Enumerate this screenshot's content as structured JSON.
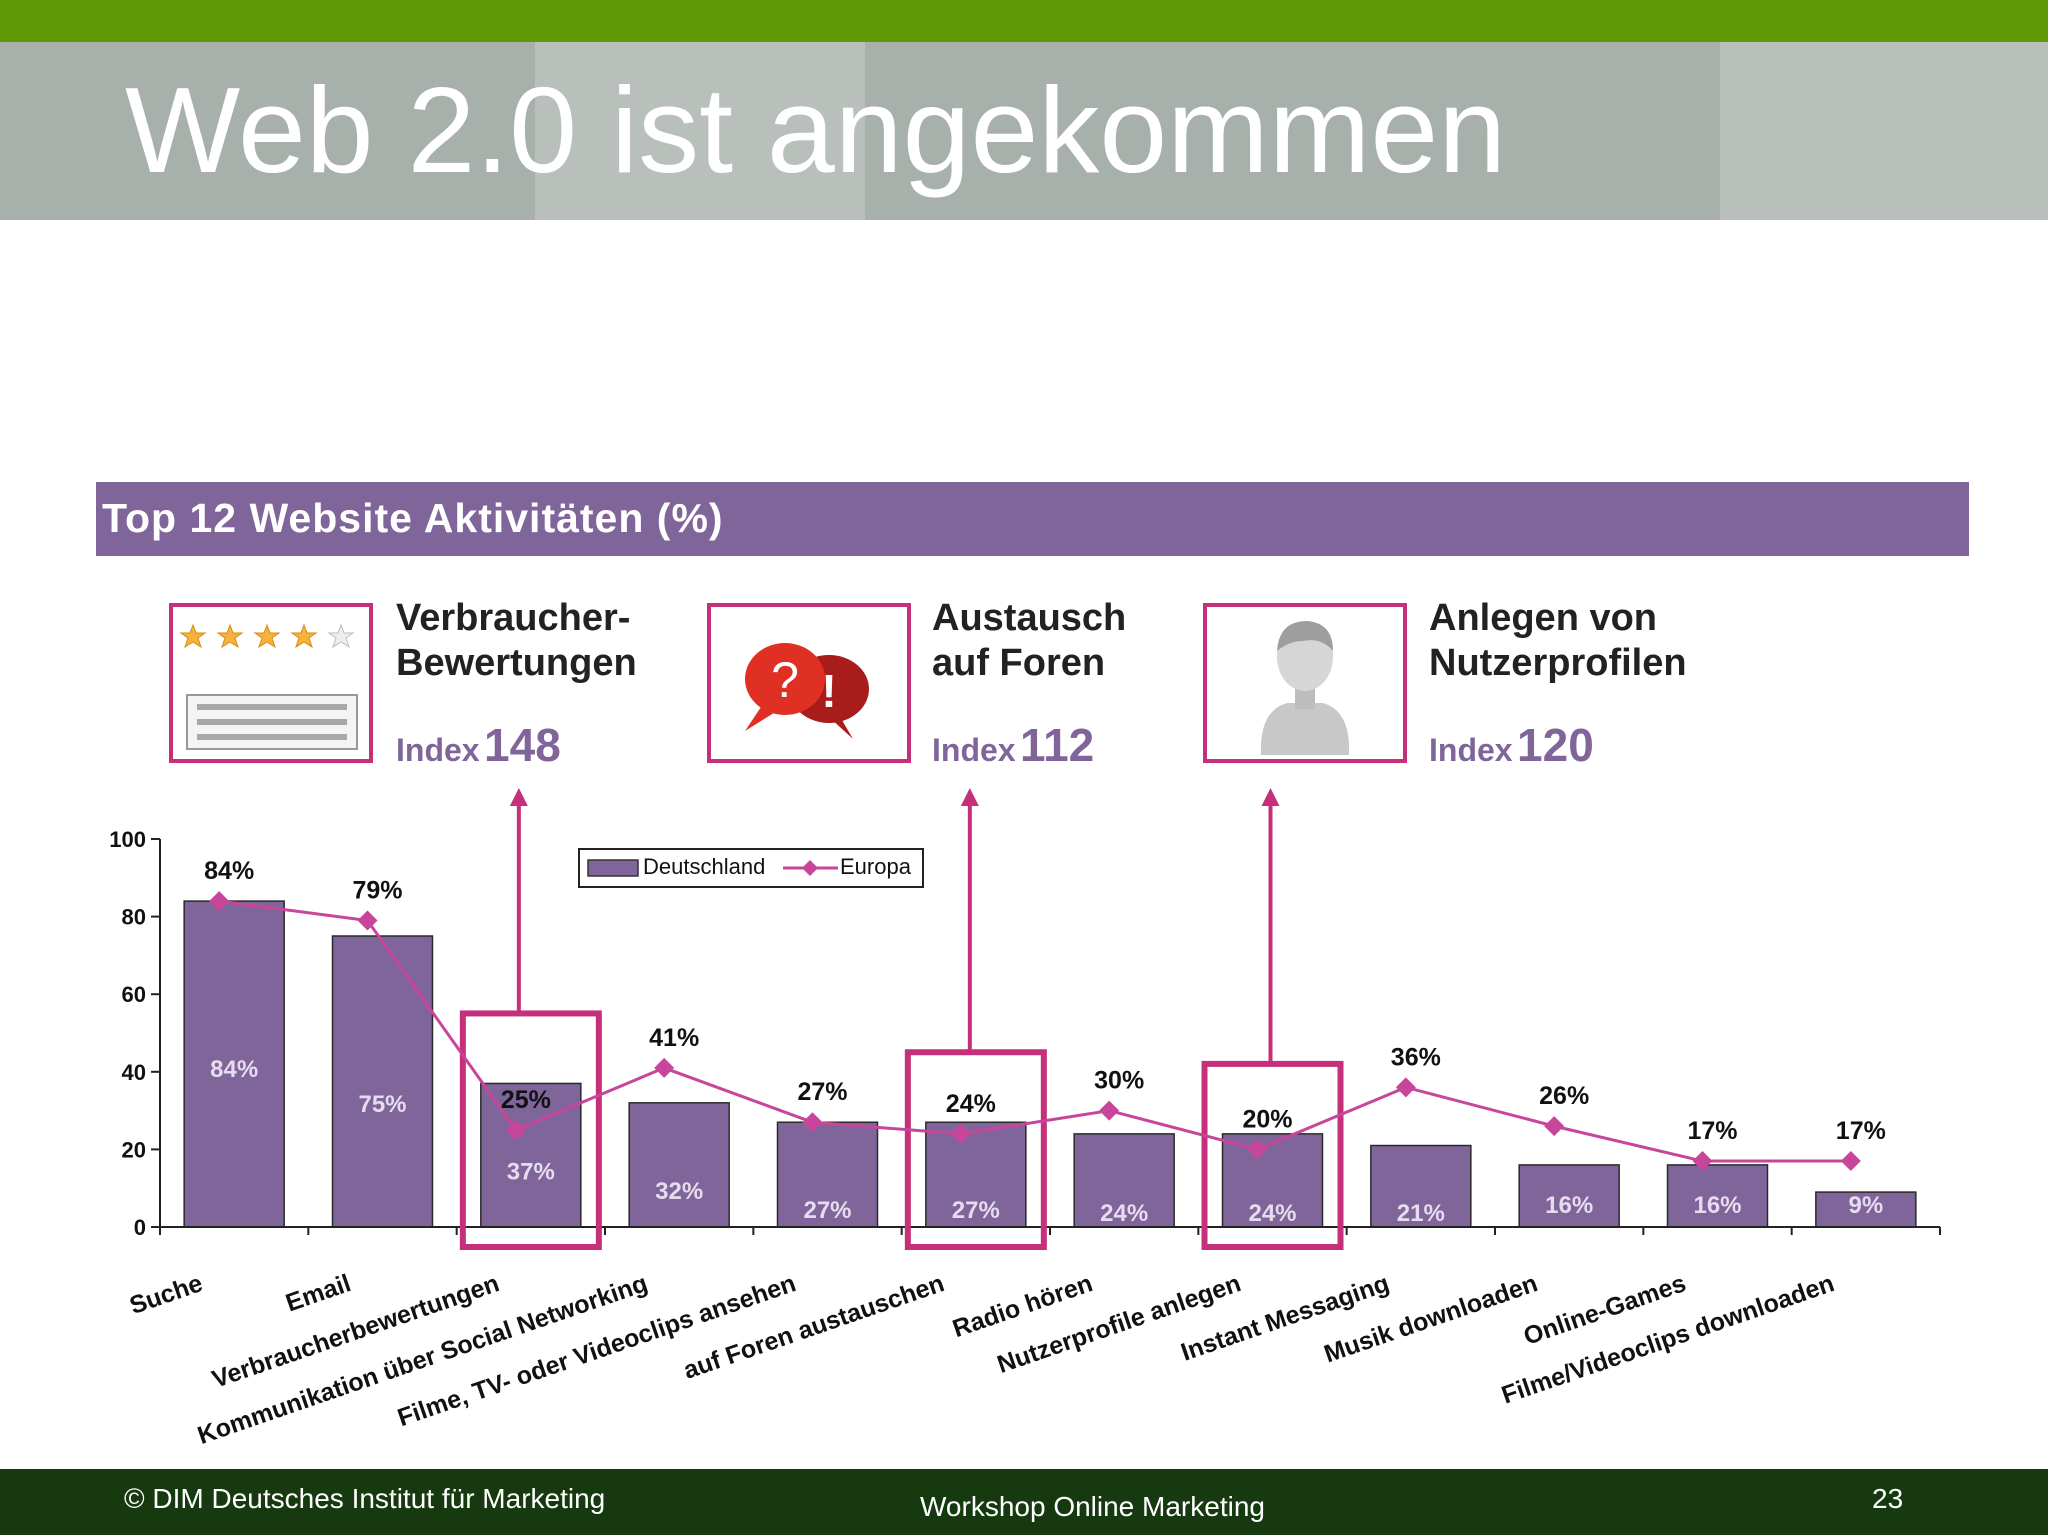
{
  "slide": {
    "title": "Web 2.0 ist angekommen",
    "banner": "Top 12 Website Aktivitäten (%)",
    "callouts": [
      {
        "title_line1": "Verbraucher-",
        "title_line2": "Bewertungen",
        "index_label": "Index",
        "index_value": "148",
        "icon": "star-rating-icon"
      },
      {
        "title_line1": "Austausch",
        "title_line2": "auf Foren",
        "index_label": "Index",
        "index_value": "112",
        "icon": "speech-bubbles-icon"
      },
      {
        "title_line1": "Anlegen von",
        "title_line2": "Nutzerprofilen",
        "index_label": "Index",
        "index_value": "120",
        "icon": "user-profile-icon"
      }
    ],
    "footer": {
      "left": "© DIM Deutsches Institut für Marketing",
      "center": "Workshop Online Marketing",
      "page": "23"
    }
  },
  "colors": {
    "bar": "#80659a",
    "line": "#c8469a",
    "highlight": "#c4307a",
    "green": "#5f9a06",
    "footer_bg": "#17390f"
  },
  "chart_data": {
    "type": "bar",
    "categories": [
      "Suche",
      "Email",
      "Verbraucherbewertungen",
      "Kommunikation über Social Networking",
      "Filme, TV- oder Videoclips ansehen",
      "auf Foren austauschen",
      "Radio hören",
      "Nutzerprofile anlegen",
      "Instant Messaging",
      "Musik downloaden",
      "Online-Games",
      "Filme/Videoclips downloaden"
    ],
    "series": [
      {
        "name": "Deutschland",
        "type": "bar",
        "values": [
          84,
          75,
          37,
          32,
          27,
          27,
          24,
          24,
          21,
          16,
          16,
          9
        ],
        "labels": [
          "84%",
          "75%",
          "37%",
          "32%",
          "27%",
          "27%",
          "24%",
          "24%",
          "21%",
          "16%",
          "16%",
          "9%"
        ]
      },
      {
        "name": "Europa",
        "type": "line",
        "values": [
          84,
          79,
          25,
          41,
          27,
          24,
          30,
          20,
          36,
          26,
          17,
          17
        ],
        "labels": [
          "84%",
          "79%",
          "25%",
          "41%",
          "27%",
          "24%",
          "30%",
          "20%",
          "36%",
          "26%",
          "17%",
          "17%"
        ]
      }
    ],
    "ylim": [
      0,
      100
    ],
    "yticks": [
      "0",
      "20",
      "40",
      "60",
      "80",
      "100"
    ],
    "highlighted_categories": [
      2,
      5,
      7
    ],
    "legend_position": "top-center",
    "grid": false
  }
}
